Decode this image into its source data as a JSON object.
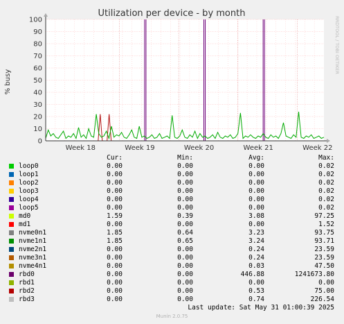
{
  "title": "Utilization per device - by month",
  "side_label": "RRDTOOL / TOBI OETIKER",
  "chart_data": {
    "type": "line",
    "title": "Utilization per device - by month",
    "ylabel": "% busy",
    "ylim": [
      0,
      100
    ],
    "y_ticks": [
      "0",
      "10",
      "20",
      "30",
      "40",
      "50",
      "60",
      "70",
      "80",
      "90",
      "100"
    ],
    "x_ticks": [
      "Week 18",
      "Week 19",
      "Week 20",
      "Week 21",
      "Week 22"
    ],
    "grid": true,
    "series": [
      {
        "name": "nvme1n1",
        "color": "#00aa00",
        "values": [
          2,
          9,
          4,
          6,
          3,
          2,
          5,
          8,
          2,
          4,
          3,
          6,
          2,
          11,
          3,
          5,
          2,
          10,
          4,
          3,
          22,
          6,
          3,
          4,
          8,
          2,
          12,
          3,
          5,
          4,
          7,
          3,
          2,
          5,
          9,
          3,
          2,
          12,
          3,
          4,
          2,
          3,
          5,
          2,
          3,
          6,
          2,
          3,
          4,
          2,
          21,
          3,
          2,
          4,
          9,
          3,
          2,
          5,
          3,
          8,
          2,
          6,
          3,
          4,
          2,
          3,
          5,
          2,
          7,
          3,
          2,
          4,
          3,
          5,
          2,
          3,
          6,
          23,
          2,
          4,
          3,
          5,
          3,
          2,
          4,
          3,
          6,
          3,
          2,
          5,
          3,
          4,
          2,
          6,
          15,
          4,
          3,
          2,
          5,
          3,
          24,
          3,
          2,
          4,
          3,
          5,
          2,
          3,
          4,
          2,
          3
        ]
      },
      {
        "name": "rbd0",
        "color": "#6f0079",
        "spikes_x": [
          0.358,
          0.571,
          0.784
        ]
      },
      {
        "name": "rbd2",
        "color": "#b21212",
        "values_peaks": [
          {
            "x": 0.196,
            "y": 22
          },
          {
            "x": 0.228,
            "y": 22
          }
        ]
      }
    ]
  },
  "legend": {
    "headers": {
      "cur": "Cur:",
      "min": "Min:",
      "avg": "Avg:",
      "max": "Max:"
    },
    "rows": [
      {
        "name": "loop0",
        "color": "#00cc00",
        "cur": "0.00",
        "min": "0.00",
        "avg": "0.00",
        "max": "0.02"
      },
      {
        "name": "loop1",
        "color": "#0066b3",
        "cur": "0.00",
        "min": "0.00",
        "avg": "0.00",
        "max": "0.02"
      },
      {
        "name": "loop2",
        "color": "#ff8000",
        "cur": "0.00",
        "min": "0.00",
        "avg": "0.00",
        "max": "0.02"
      },
      {
        "name": "loop3",
        "color": "#ffcc00",
        "cur": "0.00",
        "min": "0.00",
        "avg": "0.00",
        "max": "0.02"
      },
      {
        "name": "loop4",
        "color": "#330099",
        "cur": "0.00",
        "min": "0.00",
        "avg": "0.00",
        "max": "0.02"
      },
      {
        "name": "loop5",
        "color": "#990099",
        "cur": "0.00",
        "min": "0.00",
        "avg": "0.00",
        "max": "0.02"
      },
      {
        "name": "md0",
        "color": "#ccff00",
        "cur": "1.59",
        "min": "0.39",
        "avg": "3.08",
        "max": "97.25"
      },
      {
        "name": "md1",
        "color": "#ff0000",
        "cur": "0.00",
        "min": "0.00",
        "avg": "0.00",
        "max": "1.52"
      },
      {
        "name": "nvme0n1",
        "color": "#808080",
        "cur": "1.85",
        "min": "0.64",
        "avg": "3.23",
        "max": "93.75"
      },
      {
        "name": "nvme1n1",
        "color": "#008f00",
        "cur": "1.85",
        "min": "0.65",
        "avg": "3.24",
        "max": "93.71"
      },
      {
        "name": "nvme2n1",
        "color": "#00487d",
        "cur": "0.00",
        "min": "0.00",
        "avg": "0.24",
        "max": "23.59"
      },
      {
        "name": "nvme3n1",
        "color": "#b35a00",
        "cur": "0.00",
        "min": "0.00",
        "avg": "0.24",
        "max": "23.59"
      },
      {
        "name": "nvme4n1",
        "color": "#b38f00",
        "cur": "0.00",
        "min": "0.00",
        "avg": "0.03",
        "max": "47.50"
      },
      {
        "name": "rbd0",
        "color": "#6b006b",
        "cur": "0.00",
        "min": "0.00",
        "avg": "446.88",
        "max": "1241673.80"
      },
      {
        "name": "rbd1",
        "color": "#8fb300",
        "cur": "0.00",
        "min": "0.00",
        "avg": "0.00",
        "max": "0.00"
      },
      {
        "name": "rbd2",
        "color": "#b30000",
        "cur": "0.00",
        "min": "0.00",
        "avg": "0.53",
        "max": "75.00"
      },
      {
        "name": "rbd3",
        "color": "#bebebe",
        "cur": "0.00",
        "min": "0.00",
        "avg": "0.74",
        "max": "226.54"
      }
    ]
  },
  "last_update": "Last update: Sat May 31 01:00:39 2025",
  "footer": "Munin 2.0.75"
}
